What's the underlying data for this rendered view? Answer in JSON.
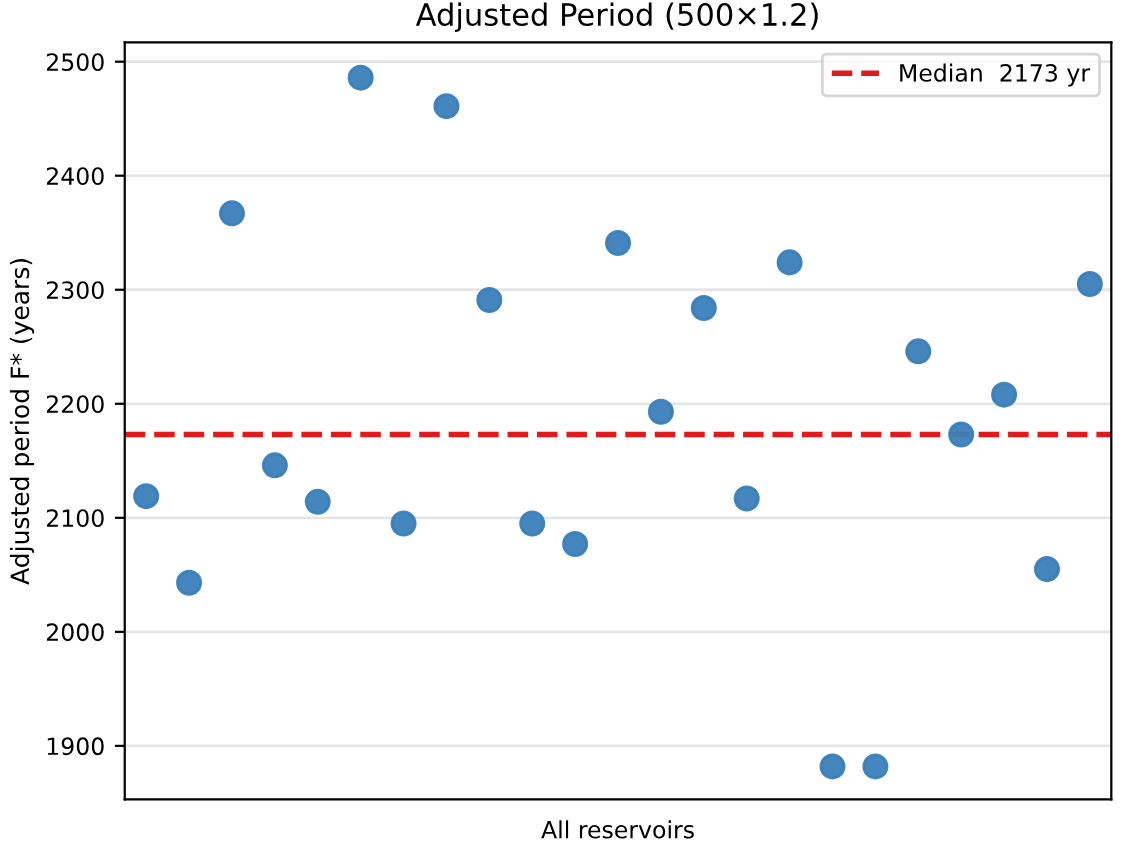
{
  "chart_data": {
    "type": "scatter",
    "title": "Adjusted Period (500×1.2)",
    "ylabel": "Adjusted period F* (years)",
    "xlabel": "All reservoirs",
    "categories": [
      null,
      null,
      null,
      null,
      null,
      null,
      null,
      null,
      null,
      null,
      null,
      null,
      null,
      null,
      null,
      null,
      null,
      null,
      null,
      null,
      null,
      null,
      null
    ],
    "ylim": [
      1853,
      2517
    ],
    "yticks": [
      1900,
      2000,
      2100,
      2200,
      2300,
      2400,
      2500
    ],
    "grid": "y",
    "legend": "top right",
    "marker": "circle",
    "series": [
      {
        "color": "#3a80b9",
        "values": [
          2119,
          2043,
          2367,
          2146,
          2114,
          2486,
          2095,
          2461,
          2291,
          2095,
          2077,
          2341,
          2193,
          2284,
          2117,
          2324,
          1882,
          1882,
          2246,
          2173,
          2208,
          2055,
          2305
        ]
      }
    ],
    "ref_lines": [
      {
        "axis": "y",
        "value": 2173,
        "label": "Median  2173 yr",
        "color": "#e31a1c",
        "line_style": "dashed"
      }
    ]
  }
}
